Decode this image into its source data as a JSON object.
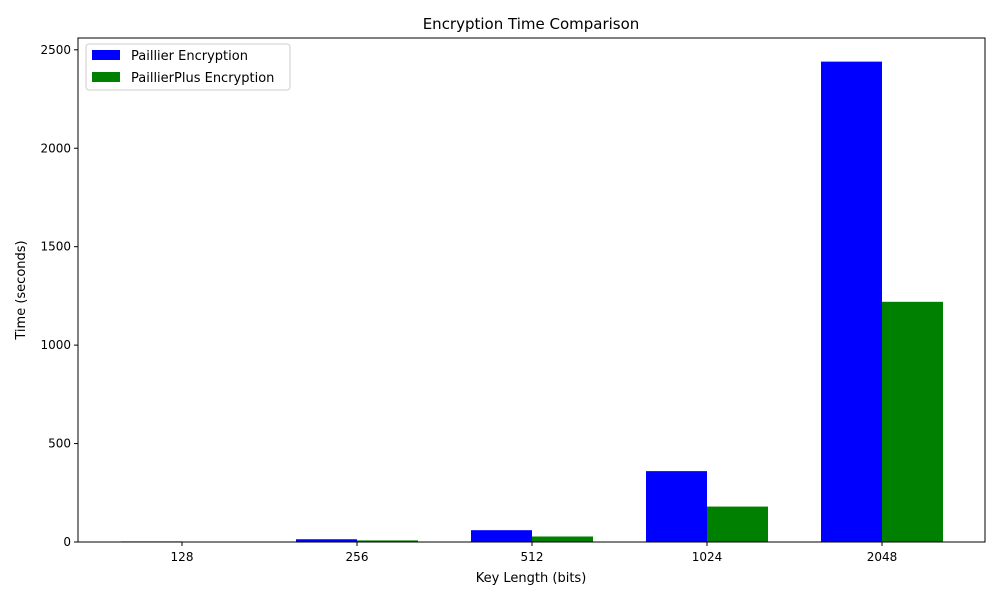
{
  "chart_data": {
    "type": "bar",
    "title": "Encryption Time Comparison",
    "xlabel": "Key Length (bits)",
    "ylabel": "Time (seconds)",
    "categories": [
      "128",
      "256",
      "512",
      "1024",
      "2048"
    ],
    "series": [
      {
        "name": "Paillier Encryption",
        "color": "#0000ff",
        "values": [
          3,
          14,
          60,
          360,
          2440
        ]
      },
      {
        "name": "PaillierPlus Encryption",
        "color": "#008000",
        "values": [
          1.5,
          8,
          28,
          180,
          1220
        ]
      }
    ],
    "ylim": [
      0,
      2560
    ],
    "yticks": [
      0,
      500,
      1000,
      1500,
      2000,
      2500
    ],
    "grid": false,
    "legend_position": "top-left"
  }
}
